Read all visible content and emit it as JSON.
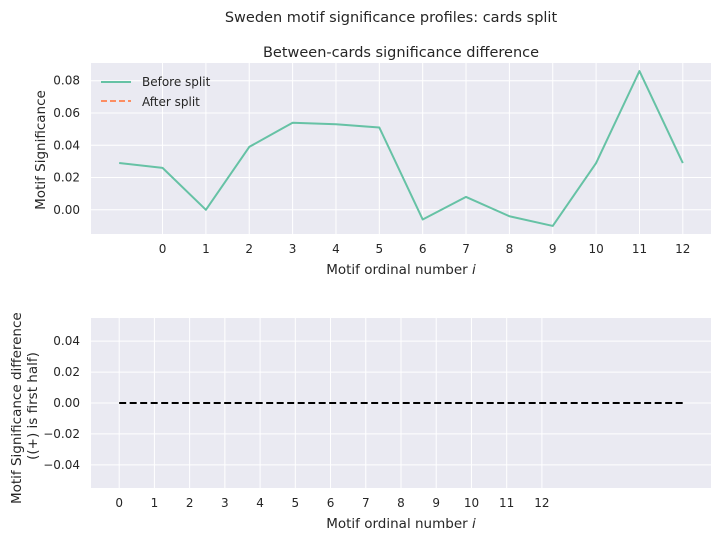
{
  "suptitle": "Sweden motif significance profiles: cards split",
  "colors": {
    "before": "#66c2a5",
    "after": "#fc8d62",
    "diff": "#000000",
    "plot_bg": "#eaeaf2",
    "grid": "#ffffff"
  },
  "chart_data": [
    {
      "type": "line",
      "title": "Between-cards significance difference",
      "xlabel_main": "Motif ordinal number ",
      "xlabel_var": "i",
      "ylabel": "Motif Significance",
      "xticks": [
        "0",
        "1",
        "2",
        "3",
        "4",
        "5",
        "6",
        "7",
        "8",
        "9",
        "10",
        "11",
        "12"
      ],
      "yticks": [
        "0.00",
        "0.02",
        "0.04",
        "0.06",
        "0.08"
      ],
      "ylim": [
        -0.015,
        0.091
      ],
      "xlim": [
        -1.65,
        12.65
      ],
      "grid": true,
      "legend_position": "top-left",
      "series": [
        {
          "name": "Before split",
          "style": "solid",
          "x": [
            -1,
            0,
            1,
            2,
            3,
            4,
            5,
            6,
            7,
            8,
            9,
            10,
            11,
            12
          ],
          "y": [
            0.029,
            0.026,
            0.0,
            0.039,
            0.054,
            0.053,
            0.051,
            -0.006,
            0.008,
            -0.004,
            -0.01,
            0.029,
            0.086,
            0.029
          ]
        },
        {
          "name": "After split",
          "style": "dashed",
          "x": [],
          "y": []
        }
      ]
    },
    {
      "type": "line",
      "title": "",
      "xlabel_main": "Motif ordinal number ",
      "xlabel_var": "i",
      "ylabel_line1": "Motif Significance difference",
      "ylabel_line2": "((+) is first half)",
      "xticks": [
        "0",
        "1",
        "2",
        "3",
        "4",
        "5",
        "6",
        "7",
        "8",
        "9",
        "10",
        "11",
        "12"
      ],
      "yticks": [
        "0.04",
        "0.02",
        "0.00",
        "−0.02",
        "−0.04"
      ],
      "ylim": [
        -0.055,
        0.055
      ],
      "xlim": [
        -0.8,
        16.8
      ],
      "grid": true,
      "series": [
        {
          "style": "dashed",
          "x": [
            0,
            16
          ],
          "y": [
            0.0,
            0.0
          ]
        }
      ]
    }
  ]
}
